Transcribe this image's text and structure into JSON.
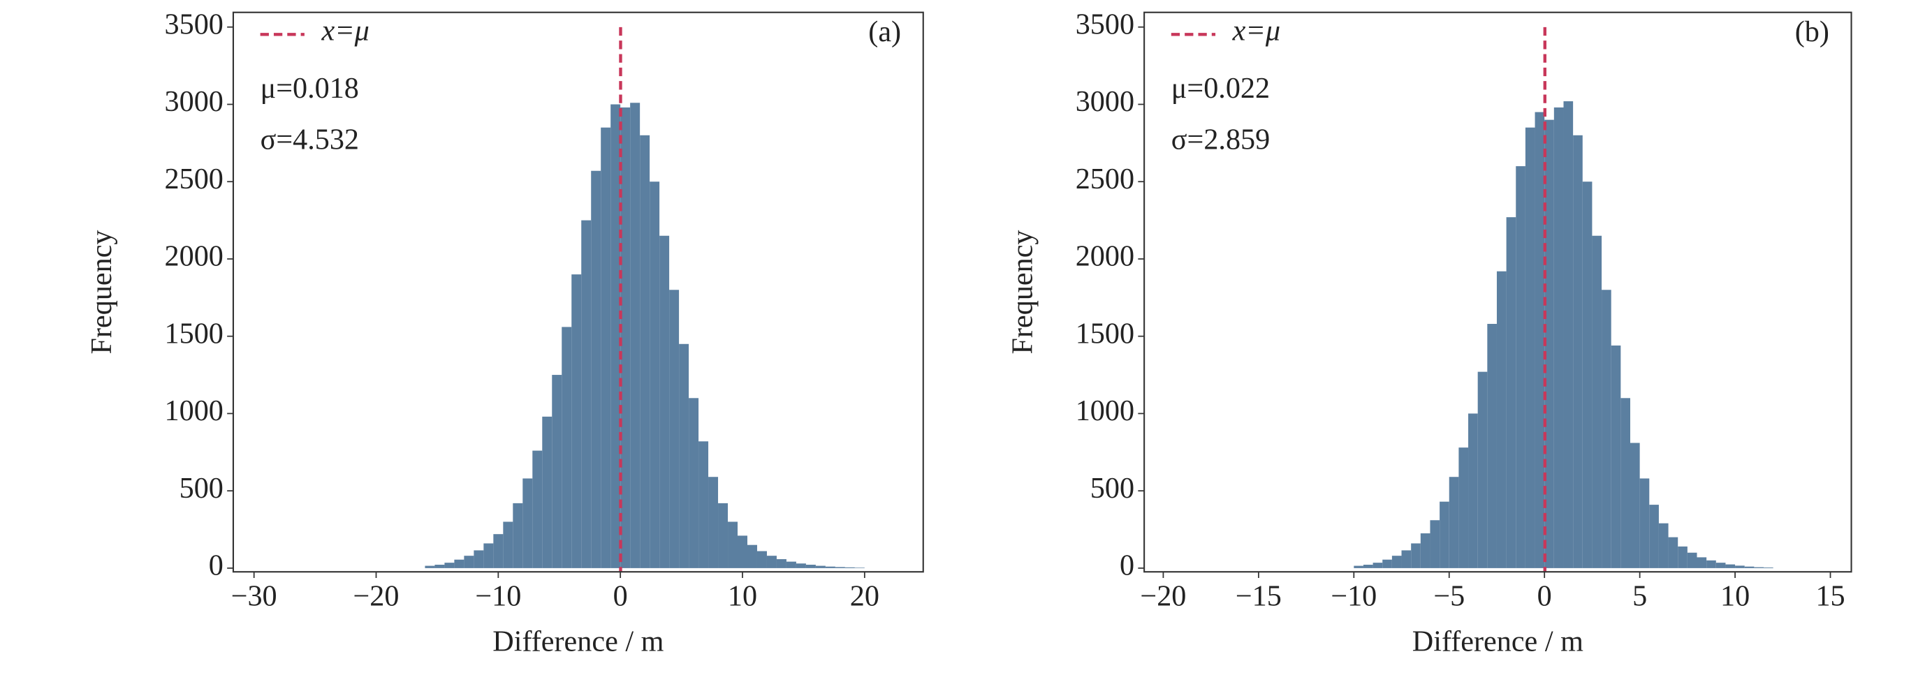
{
  "chart_data": [
    {
      "type": "histogram",
      "panel_label": "(a)",
      "xlabel": "Difference / m",
      "ylabel": "Frequency",
      "color": "#5b7fa0",
      "bins": [
        -16,
        -15.2,
        -14.4,
        -13.6,
        -12.8,
        -12,
        -11.2,
        -10.4,
        -9.6,
        -8.8,
        -8,
        -7.2,
        -6.4,
        -5.6,
        -4.8,
        -4,
        -3.2,
        -2.4,
        -1.6,
        -0.8,
        0,
        0.8,
        1.6,
        2.4,
        3.2,
        4,
        4.8,
        5.6,
        6.4,
        7.2,
        8,
        8.8,
        9.6,
        10.4,
        11.2,
        12,
        12.8,
        13.6,
        14.4,
        15.2,
        16,
        16.8,
        17.6,
        18.4,
        19.2,
        20
      ],
      "values": [
        15,
        22,
        35,
        55,
        80,
        115,
        160,
        220,
        300,
        420,
        580,
        760,
        980,
        1250,
        1560,
        1900,
        2250,
        2570,
        2850,
        3000,
        2980,
        3010,
        2800,
        2500,
        2150,
        1800,
        1450,
        1100,
        820,
        590,
        420,
        300,
        210,
        150,
        110,
        80,
        58,
        42,
        30,
        22,
        15,
        10,
        7,
        5,
        3
      ],
      "xlim": [
        -31.7,
        24.8
      ],
      "ylim": [
        -24,
        3595
      ],
      "xticks": [
        {
          "value": -30,
          "label": "−30"
        },
        {
          "value": -20,
          "label": "−20"
        },
        {
          "value": -10,
          "label": "−10"
        },
        0,
        10,
        20
      ],
      "yticks": [
        0,
        500,
        1000,
        1500,
        2000,
        2500,
        3000,
        3500
      ],
      "mean_line": {
        "name": "x=μ",
        "value": 0.018,
        "color": "#c8375a"
      },
      "annotations": [
        "μ=0.018",
        "σ=4.532"
      ]
    },
    {
      "type": "histogram",
      "panel_label": "(b)",
      "xlabel": "Difference / m",
      "ylabel": "Frequency",
      "color": "#5b7fa0",
      "bins": [
        -10,
        -9.5,
        -9,
        -8.5,
        -8,
        -7.5,
        -7,
        -6.5,
        -6,
        -5.5,
        -5,
        -4.5,
        -4,
        -3.5,
        -3,
        -2.5,
        -2,
        -1.5,
        -1,
        -0.5,
        0,
        0.5,
        1,
        1.5,
        2,
        2.5,
        3,
        3.5,
        4,
        4.5,
        5,
        5.5,
        6,
        6.5,
        7,
        7.5,
        8,
        8.5,
        9,
        9.5,
        10,
        10.5,
        11,
        11.5,
        12
      ],
      "values": [
        15,
        22,
        35,
        55,
        80,
        115,
        160,
        225,
        310,
        430,
        590,
        780,
        1000,
        1270,
        1580,
        1920,
        2270,
        2600,
        2850,
        2950,
        2900,
        2980,
        3020,
        2800,
        2500,
        2150,
        1800,
        1440,
        1100,
        810,
        580,
        410,
        290,
        200,
        140,
        100,
        70,
        50,
        35,
        24,
        16,
        10,
        6,
        4
      ],
      "xlim": [
        -21.0,
        16.1
      ],
      "ylim": [
        -24,
        3595
      ],
      "xticks": [
        {
          "value": -20,
          "label": "−20"
        },
        {
          "value": -15,
          "label": "−15"
        },
        {
          "value": -10,
          "label": "−10"
        },
        {
          "value": -5,
          "label": "−5"
        },
        0,
        5,
        10,
        15
      ],
      "yticks": [
        0,
        500,
        1000,
        1500,
        2000,
        2500,
        3000,
        3500
      ],
      "mean_line": {
        "name": "x=μ",
        "value": 0.022,
        "color": "#c8375a"
      },
      "annotations": [
        "μ=0.022",
        "σ=2.859"
      ]
    }
  ]
}
